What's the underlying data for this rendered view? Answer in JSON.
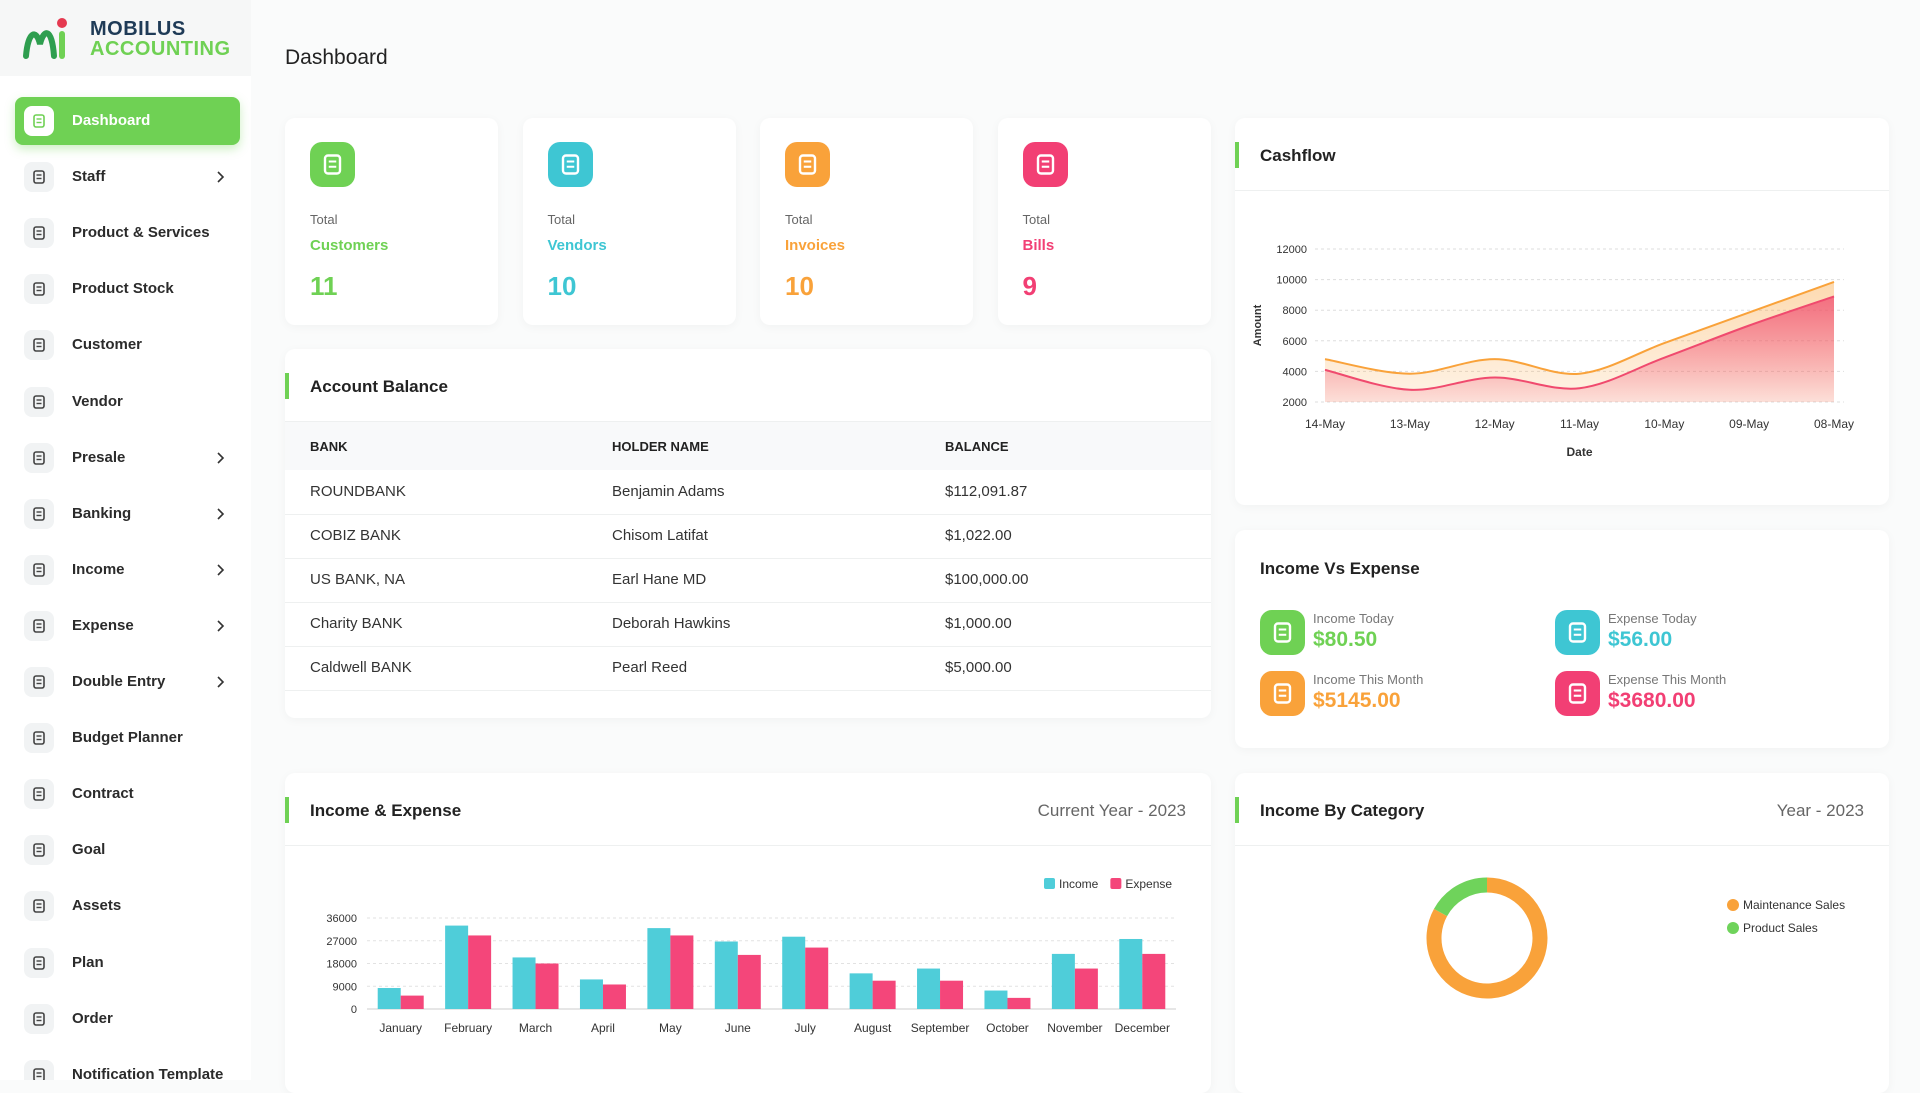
{
  "logo": {
    "line1": "MOBILUS",
    "line2": "ACCOUNTING"
  },
  "sidebar": {
    "items": [
      "Dashboard",
      "Staff",
      "Product & Services",
      "Product Stock",
      "Customer",
      "Vendor",
      "Presale",
      "Banking",
      "Income",
      "Expense",
      "Double Entry",
      "Budget Planner",
      "Contract",
      "Goal",
      "Assets",
      "Plan",
      "Order",
      "Notification Template"
    ]
  },
  "page_title": "Dashboard",
  "stats": [
    {
      "caption": "Total",
      "label": "Customers",
      "value": 11,
      "color": "#6fd154"
    },
    {
      "caption": "Total",
      "label": "Vendors",
      "value": 10,
      "color": "#3ec6d3"
    },
    {
      "caption": "Total",
      "label": "Invoices",
      "value": 10,
      "color": "#f9a23a"
    },
    {
      "caption": "Total",
      "label": "Bills",
      "value": 9,
      "color": "#f23f74"
    }
  ],
  "account_balance": {
    "title": "Account Balance",
    "columns": [
      "BANK",
      "HOLDER NAME",
      "BALANCE"
    ],
    "rows": [
      [
        "ROUNDBANK",
        "Benjamin Adams",
        "$112,091.87"
      ],
      [
        "COBIZ BANK",
        "Chisom Latifat",
        "$1,022.00"
      ],
      [
        "US BANK, NA",
        "Earl Hane MD",
        "$100,000.00"
      ],
      [
        "Charity BANK",
        "Deborah Hawkins",
        "$1,000.00"
      ],
      [
        "Caldwell BANK",
        "Pearl Reed",
        "$5,000.00"
      ]
    ]
  },
  "income_vs_expense": {
    "title": "Income Vs Expense",
    "items": [
      {
        "label": "Income Today",
        "value": "$80.50",
        "color": "#6fd154"
      },
      {
        "label": "Expense Today",
        "value": "$56.00",
        "color": "#3ec6d3"
      },
      {
        "label": "Income This Month",
        "value": "$5145.00",
        "color": "#f9a23a"
      },
      {
        "label": "Expense This Month",
        "value": "$3680.00",
        "color": "#f23f74"
      }
    ]
  },
  "chart_data": [
    {
      "type": "area",
      "title": "Cashflow",
      "x_label": "Date",
      "y_label": "Amount",
      "categories": [
        "14-May",
        "13-May",
        "12-May",
        "11-May",
        "10-May",
        "09-May",
        "08-May"
      ],
      "series": [
        {
          "color": "#f9a23a",
          "values": [
            4800,
            3850,
            4800,
            3850,
            5850,
            7850,
            9850
          ]
        },
        {
          "color": "#f04a6e",
          "values": [
            4100,
            2800,
            3600,
            2900,
            4900,
            7000,
            8900
          ]
        }
      ],
      "ylim": [
        2000,
        12000
      ],
      "yticks": [
        2000,
        4000,
        6000,
        8000,
        10000,
        12000
      ],
      "grid": true
    },
    {
      "type": "bar",
      "title": "Income & Expense",
      "subtitle": "Current Year - 2023",
      "categories": [
        "January",
        "February",
        "March",
        "April",
        "May",
        "June",
        "July",
        "August",
        "September",
        "October",
        "November",
        "December"
      ],
      "series": [
        {
          "name": "Income",
          "color": "#4fcdd9",
          "values": [
            8300,
            33000,
            20400,
            11700,
            32000,
            26700,
            28600,
            14100,
            16000,
            7300,
            21800,
            27700
          ]
        },
        {
          "name": "Expense",
          "color": "#f4467a",
          "values": [
            5300,
            29100,
            18000,
            9700,
            29100,
            21400,
            24300,
            11200,
            11200,
            4400,
            16000,
            21800
          ]
        }
      ],
      "ylim": [
        0,
        36000
      ],
      "yticks": [
        0,
        9000,
        18000,
        27000,
        36000
      ],
      "grid": true,
      "legend": "top-right"
    },
    {
      "type": "donut",
      "title": "Income By Category",
      "subtitle": "Year - 2023",
      "categories": [
        "Maintenance Sales",
        "Product Sales"
      ],
      "values": [
        83,
        17
      ],
      "colors": [
        "#f9a23a",
        "#6fd35b"
      ],
      "legend": "right"
    }
  ]
}
